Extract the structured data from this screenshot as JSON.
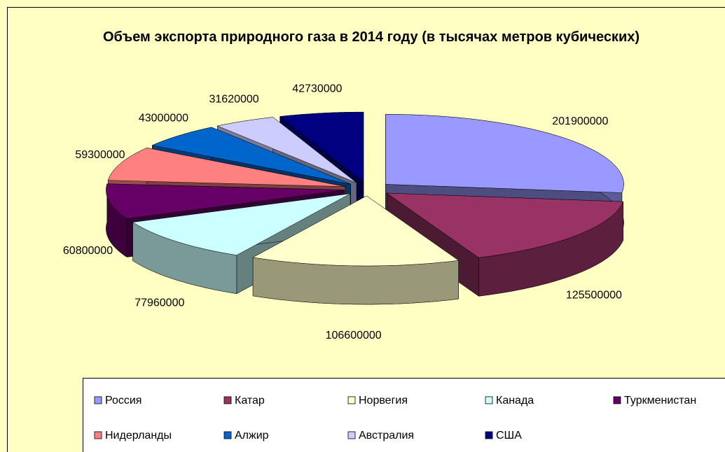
{
  "chart_data": {
    "type": "pie3d",
    "title": "Объем экспорта природного газа в 2014 году (в тысячах метров кубических)",
    "categories": [
      "Россия",
      "Катар",
      "Норвегия",
      "Канада",
      "Туркменистан",
      "Нидерланды",
      "Алжир",
      "Австралия",
      "США"
    ],
    "values": [
      201900000,
      125500000,
      106600000,
      77960000,
      60800000,
      59300000,
      43000000,
      31620000,
      42730000
    ],
    "colors": [
      "#9999ff",
      "#993366",
      "#ffffcc",
      "#ccffff",
      "#660066",
      "#ff8080",
      "#0066cc",
      "#ccccff",
      "#000080"
    ],
    "legend": "bottom"
  }
}
